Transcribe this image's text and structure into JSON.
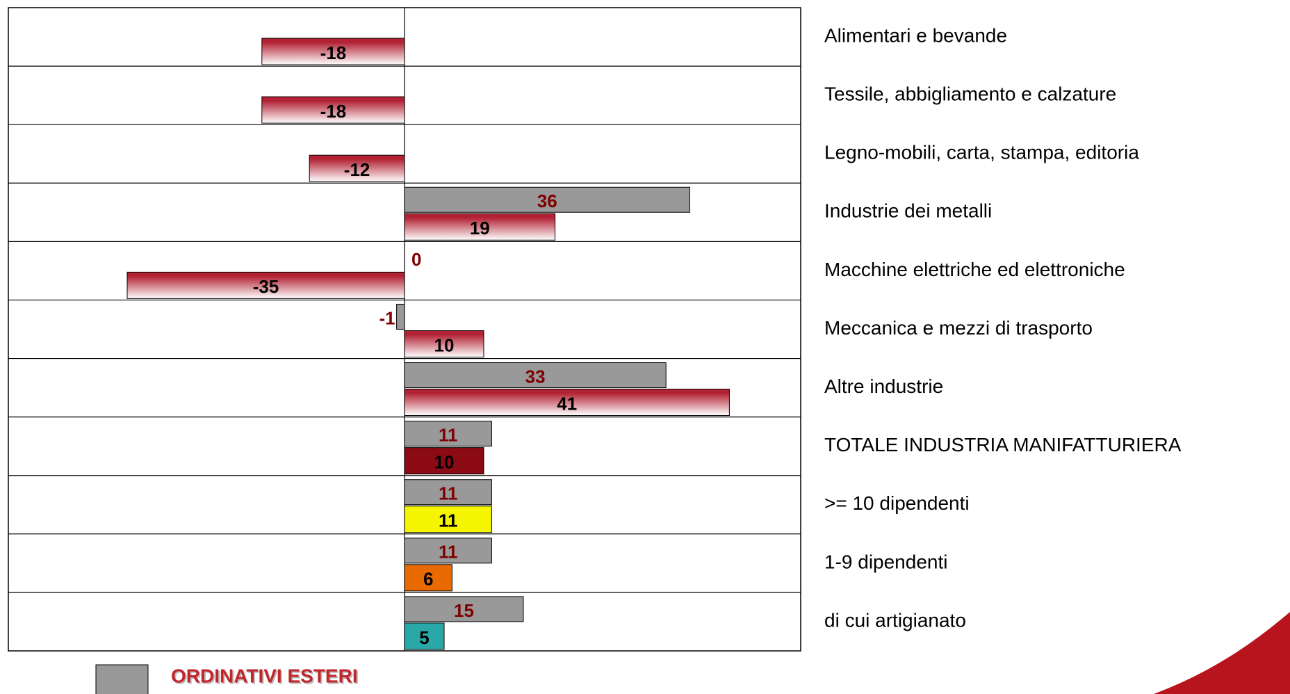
{
  "chart_data": {
    "type": "hbar",
    "categories": [
      "Alimentari e bevande",
      "Tessile, abbigliamento e calzature",
      "Legno-mobili, carta, stampa, editoria",
      "Industrie dei metalli",
      "Macchine elettriche ed elettroniche",
      "Meccanica e mezzi di trasporto",
      "Altre industrie",
      "TOTALE INDUSTRIA MANIFATTURIERA",
      ">= 10 dipendenti",
      "1-9 dipendenti",
      "di cui artigianato"
    ],
    "series": [
      {
        "name": "ORDINATIVI ESTERI",
        "color": "#999999",
        "values": [
          null,
          null,
          null,
          36,
          0,
          -1,
          33,
          11,
          11,
          11,
          15
        ]
      },
      {
        "color": "#b22234",
        "colors": [
          "#b22234",
          "#b22234",
          "#b22234",
          "#b22234",
          "#b22234",
          "#b22234",
          "#b22234",
          "#8b0a14",
          "#f5f500",
          "#e86a00",
          "#2aa8a8"
        ],
        "values": [
          -18,
          -18,
          -12,
          19,
          -35,
          10,
          41,
          10,
          11,
          6,
          5
        ]
      }
    ],
    "xlim": [
      -50,
      50
    ]
  }
}
